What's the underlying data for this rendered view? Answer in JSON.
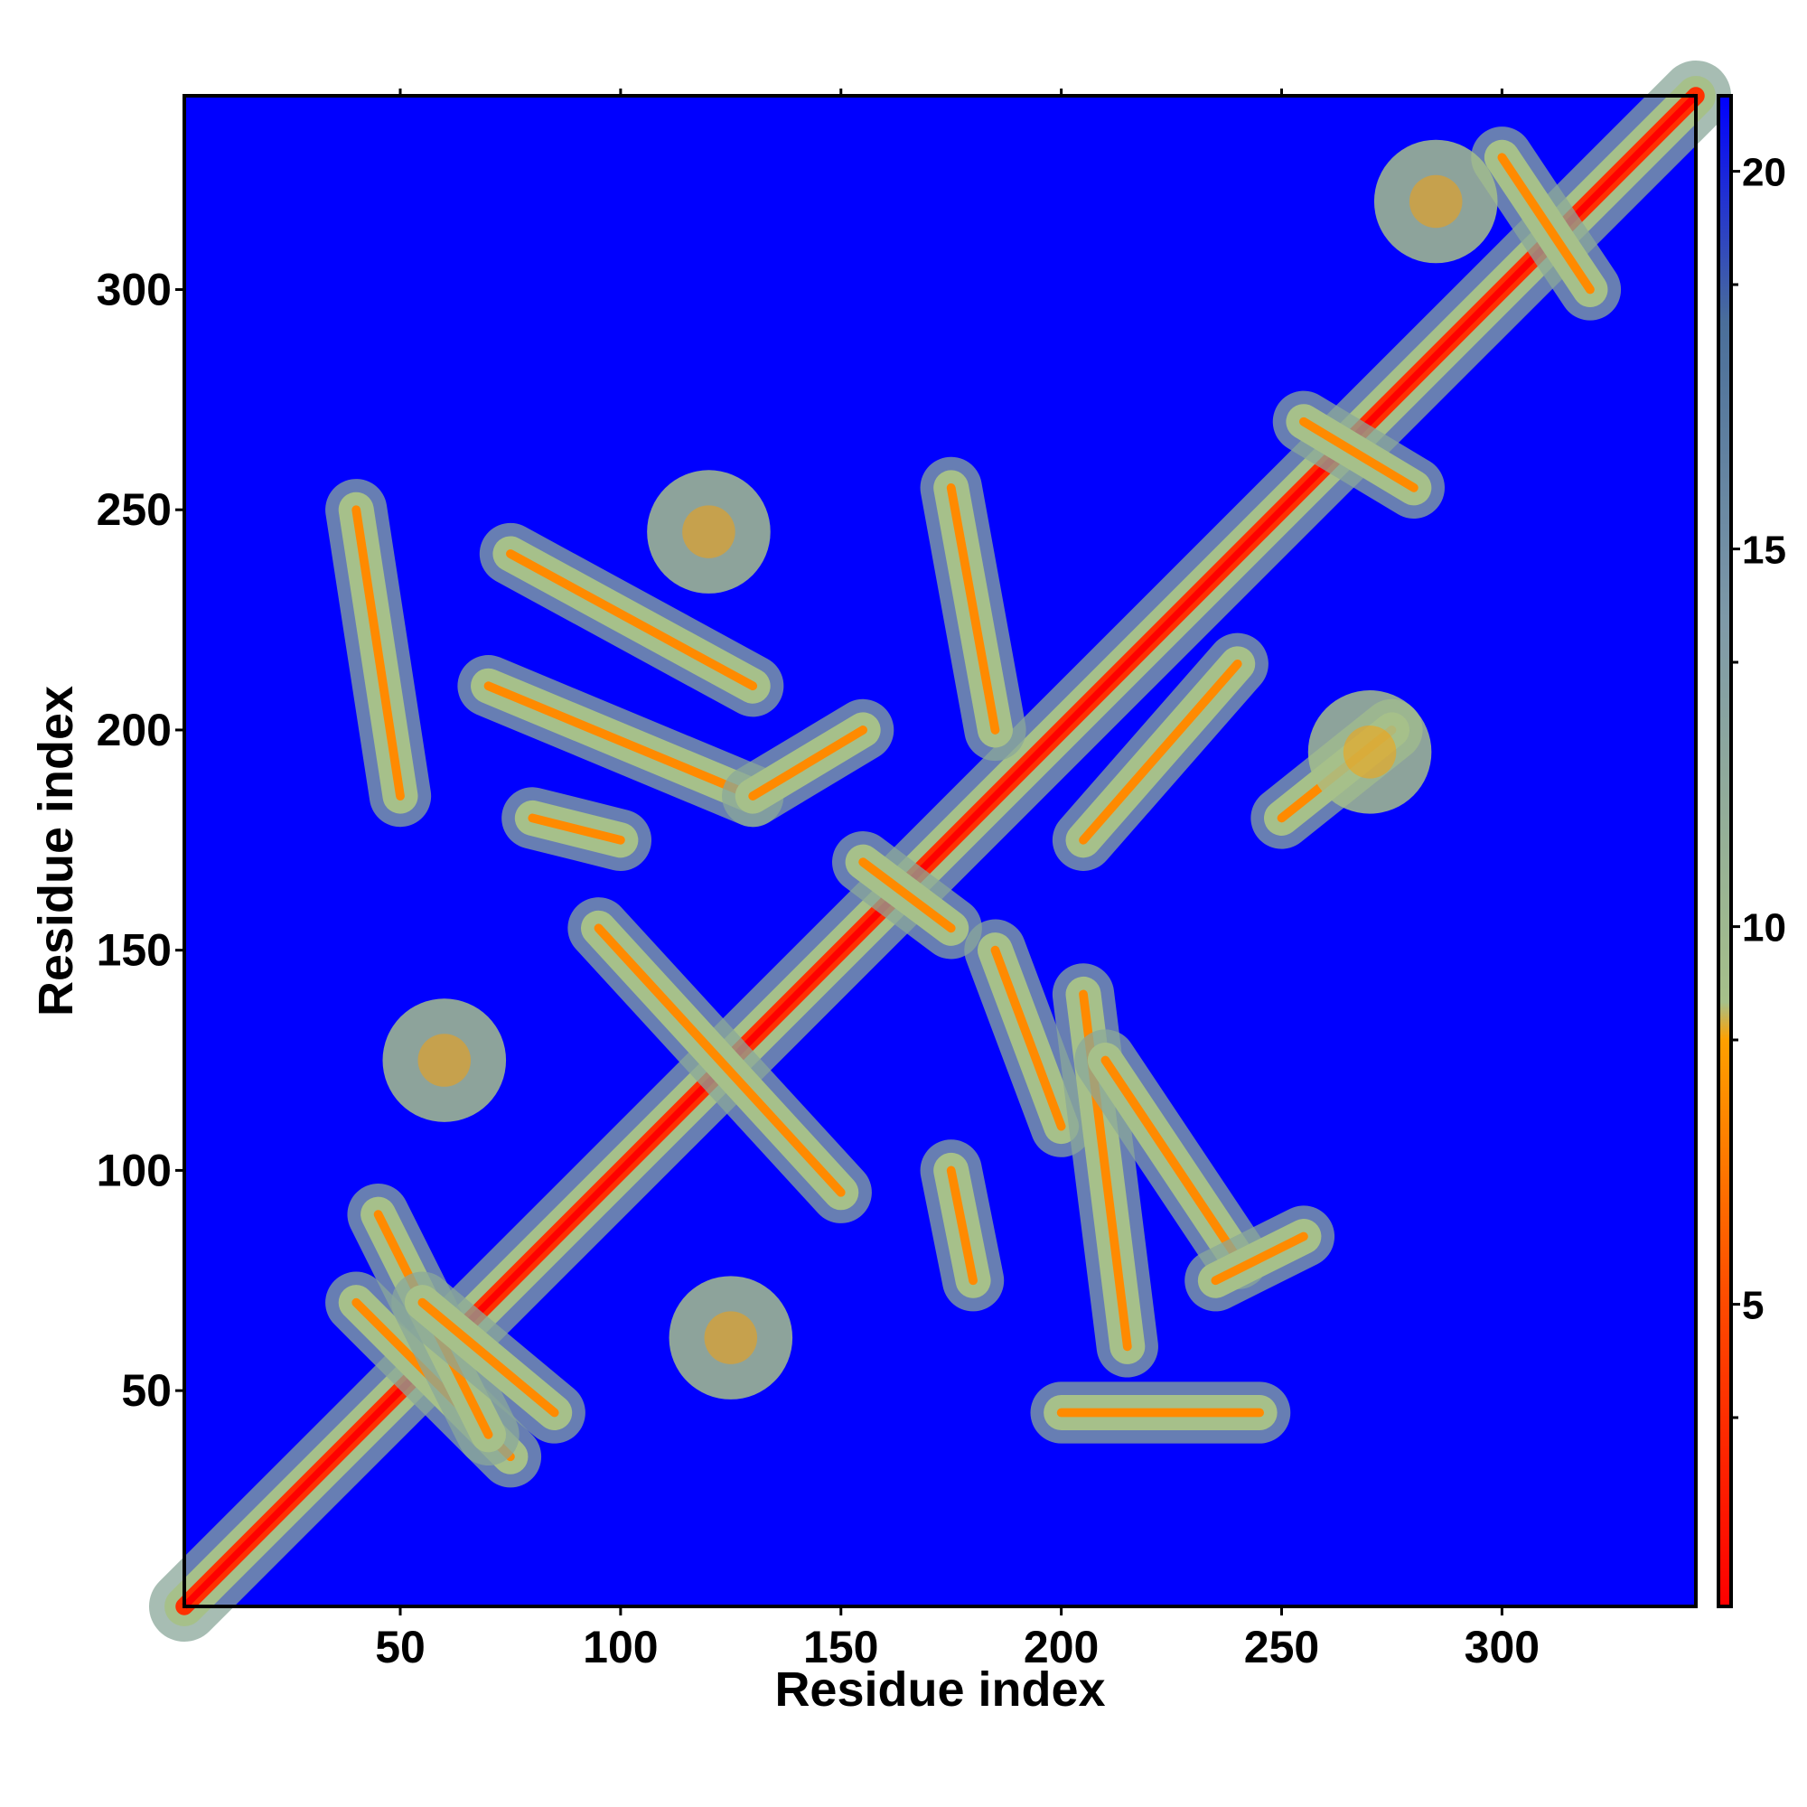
{
  "chart_data": {
    "type": "heatmap",
    "title": "",
    "xlabel": "Residue index",
    "ylabel": "Residue index",
    "xlim": [
      1,
      344
    ],
    "ylim": [
      1,
      344
    ],
    "xticks": [
      50,
      100,
      150,
      200,
      250,
      300
    ],
    "yticks": [
      50,
      100,
      150,
      200,
      250,
      300
    ],
    "colorbar": {
      "range": [
        1,
        21
      ],
      "ticks": [
        5,
        10,
        15,
        20
      ],
      "stops": [
        {
          "value": 1,
          "color": "#ff0000"
        },
        {
          "value": 5,
          "color": "#ff4a00"
        },
        {
          "value": 8.5,
          "color": "#ffa000"
        },
        {
          "value": 9.0,
          "color": "#a6c08a"
        },
        {
          "value": 14,
          "color": "#7f9aa8"
        },
        {
          "value": 18,
          "color": "#4a6e9a"
        },
        {
          "value": 21,
          "color": "#0000ff"
        }
      ]
    },
    "background_value": 21,
    "background_color": "#0000ff",
    "contact_features": [
      {
        "kind": "diagonal",
        "x0": 1,
        "y0": 1,
        "x1": 344,
        "y1": 344
      },
      {
        "kind": "band",
        "x0": 40,
        "y0": 70,
        "x1": 75,
        "y1": 35
      },
      {
        "kind": "band",
        "x0": 45,
        "y0": 90,
        "x1": 70,
        "y1": 40
      },
      {
        "kind": "band",
        "x0": 55,
        "y0": 70,
        "x1": 85,
        "y1": 45
      },
      {
        "kind": "band",
        "x0": 95,
        "y0": 155,
        "x1": 150,
        "y1": 95
      },
      {
        "kind": "band",
        "x0": 155,
        "y0": 170,
        "x1": 175,
        "y1": 155
      },
      {
        "kind": "band",
        "x0": 75,
        "y0": 240,
        "x1": 130,
        "y1": 210
      },
      {
        "kind": "band",
        "x0": 70,
        "y0": 210,
        "x1": 130,
        "y1": 185
      },
      {
        "kind": "band",
        "x0": 80,
        "y0": 180,
        "x1": 100,
        "y1": 175
      },
      {
        "kind": "band",
        "x0": 130,
        "y0": 185,
        "x1": 155,
        "y1": 200
      },
      {
        "kind": "band",
        "x0": 40,
        "y0": 250,
        "x1": 50,
        "y1": 185
      },
      {
        "kind": "band",
        "x0": 175,
        "y0": 255,
        "x1": 185,
        "y1": 200
      },
      {
        "kind": "band",
        "x0": 205,
        "y0": 175,
        "x1": 240,
        "y1": 215
      },
      {
        "kind": "band",
        "x0": 250,
        "y0": 180,
        "x1": 275,
        "y1": 200
      },
      {
        "kind": "band",
        "x0": 255,
        "y0": 270,
        "x1": 280,
        "y1": 255
      },
      {
        "kind": "band",
        "x0": 185,
        "y0": 150,
        "x1": 200,
        "y1": 110
      },
      {
        "kind": "band",
        "x0": 175,
        "y0": 100,
        "x1": 180,
        "y1": 75
      },
      {
        "kind": "band",
        "x0": 205,
        "y0": 140,
        "x1": 215,
        "y1": 60
      },
      {
        "kind": "band",
        "x0": 210,
        "y0": 125,
        "x1": 240,
        "y1": 80
      },
      {
        "kind": "band",
        "x0": 235,
        "y0": 75,
        "x1": 255,
        "y1": 85
      },
      {
        "kind": "band",
        "x0": 200,
        "y0": 45,
        "x1": 245,
        "y1": 45
      },
      {
        "kind": "band",
        "x0": 300,
        "y0": 330,
        "x1": 320,
        "y1": 300
      },
      {
        "kind": "blob",
        "x": 60,
        "y": 125
      },
      {
        "kind": "blob",
        "x": 125,
        "y": 62
      },
      {
        "kind": "blob",
        "x": 285,
        "y": 320
      },
      {
        "kind": "blob",
        "x": 270,
        "y": 195
      },
      {
        "kind": "blob",
        "x": 120,
        "y": 245
      }
    ]
  }
}
